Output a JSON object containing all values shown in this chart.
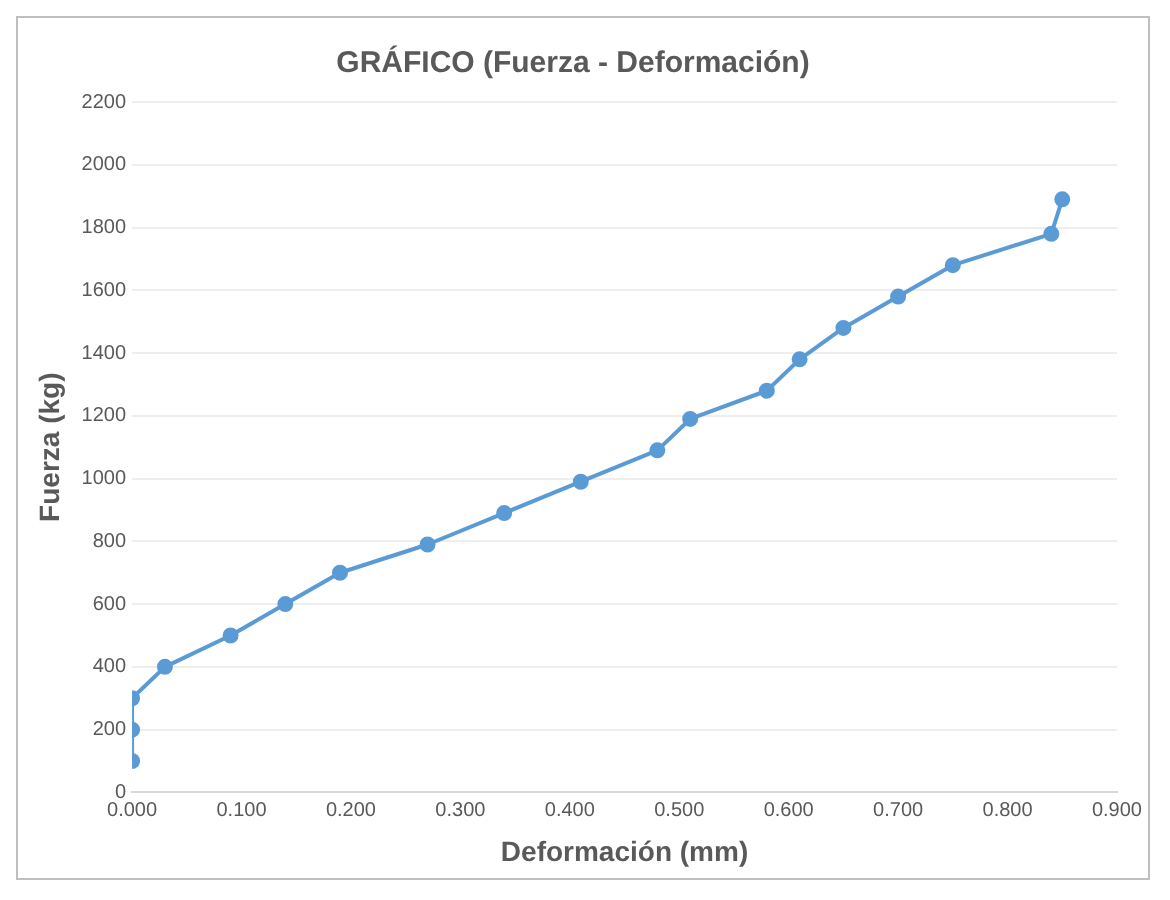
{
  "chart_data": {
    "type": "line",
    "title": "GRÁFICO (Fuerza - Deformación)",
    "xlabel": "Deformación (mm)",
    "ylabel": "Fuerza (kg)",
    "x": [
      0,
      0,
      0,
      0.03,
      0.09,
      0.14,
      0.19,
      0.27,
      0.34,
      0.41,
      0.48,
      0.51,
      0.58,
      0.61,
      0.65,
      0.7,
      0.75,
      0.84,
      0.85
    ],
    "series": [
      {
        "color": "#5b9bd5",
        "values": [
          100,
          200,
          300,
          400,
          500,
          600,
          700,
          790,
          890,
          990,
          1090,
          1190,
          1280,
          1380,
          1480,
          1580,
          1680,
          1780,
          1890
        ]
      }
    ],
    "xlim": [
      0,
      0.9
    ],
    "xticks": [
      {
        "value": 0,
        "label": "0.000"
      },
      {
        "value": 0.1,
        "label": "0.100"
      },
      {
        "value": 0.2,
        "label": "0.200"
      },
      {
        "value": 0.3,
        "label": "0.300"
      },
      {
        "value": 0.4,
        "label": "0.400"
      },
      {
        "value": 0.5,
        "label": "0.500"
      },
      {
        "value": 0.6,
        "label": "0.600"
      },
      {
        "value": 0.7,
        "label": "0.700"
      },
      {
        "value": 0.8,
        "label": "0.800"
      },
      {
        "value": 0.9,
        "label": "0.900"
      }
    ],
    "ylim": [
      0,
      2200
    ],
    "yticks": [
      0,
      200,
      400,
      600,
      800,
      1000,
      1200,
      1400,
      1600,
      1800,
      2000,
      2200
    ],
    "grid": "y",
    "marker": "circle",
    "line_style": "solid",
    "legend": false
  }
}
